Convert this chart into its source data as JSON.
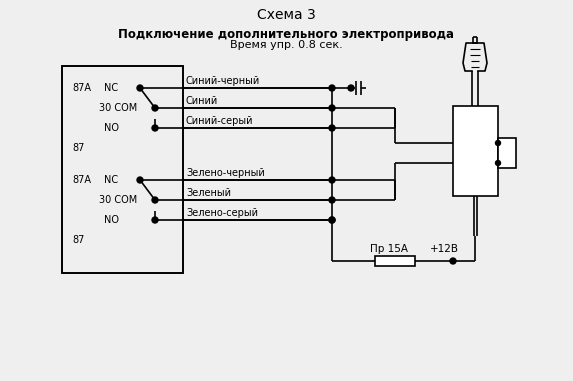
{
  "title": "Схема 3",
  "subtitle_bold": "Подключение дополнительного электропривода",
  "subtitle_normal": "Время упр. 0.8 сек.",
  "bg_color": "#efefef",
  "line_color": "#000000",
  "text_color": "#000000",
  "fig_width": 5.73,
  "fig_height": 3.81,
  "dpi": 100
}
